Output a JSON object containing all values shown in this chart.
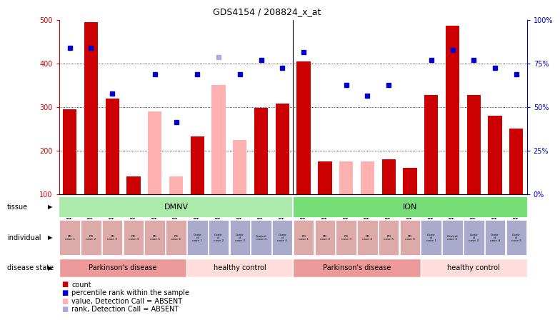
{
  "title": "GDS4154 / 208824_x_at",
  "samples": [
    "GSM488119",
    "GSM488121",
    "GSM488123",
    "GSM488125",
    "GSM488127",
    "GSM488129",
    "GSM488111",
    "GSM488113",
    "GSM488115",
    "GSM488117",
    "GSM488131",
    "GSM488120",
    "GSM488122",
    "GSM488124",
    "GSM488126",
    "GSM488128",
    "GSM488130",
    "GSM488112",
    "GSM488114",
    "GSM488116",
    "GSM488118",
    "GSM488132"
  ],
  "bar_values": [
    295,
    495,
    320,
    140,
    null,
    null,
    232,
    null,
    null,
    298,
    308,
    405,
    175,
    null,
    null,
    180,
    160,
    328,
    487,
    328,
    280,
    250
  ],
  "bar_absent": [
    null,
    null,
    null,
    null,
    290,
    140,
    null,
    350,
    225,
    null,
    null,
    null,
    null,
    175,
    175,
    null,
    null,
    null,
    null,
    null,
    null,
    null
  ],
  "rank_values": [
    435,
    435,
    330,
    null,
    375,
    265,
    375,
    null,
    375,
    408,
    390,
    425,
    null,
    350,
    325,
    350,
    null,
    407,
    430,
    408,
    390,
    375
  ],
  "rank_absent": [
    null,
    null,
    null,
    null,
    null,
    null,
    null,
    415,
    null,
    null,
    null,
    null,
    null,
    null,
    null,
    null,
    null,
    null,
    null,
    null,
    null,
    null
  ],
  "ylim_left": [
    100,
    500
  ],
  "ylim_right_labels": [
    "0%",
    "25%",
    "50%",
    "75%",
    "100%"
  ],
  "ytick_left": [
    100,
    200,
    300,
    400,
    500
  ],
  "ytick_right_pos": [
    100,
    200,
    300,
    400,
    500
  ],
  "color_bar": "#cc0000",
  "color_bar_absent": "#ffb0b0",
  "color_rank": "#0000cc",
  "color_rank_absent": "#aaaadd",
  "color_tissue_dmnv": "#aaeaaa",
  "color_tissue_ion": "#77dd77",
  "color_pd_bg": "#ee9999",
  "color_ctrl_bg": "#ffdddd",
  "color_ind_pd": "#ddaaaa",
  "color_ind_ctrl": "#aaaacc",
  "color_axis_left": "#cc0000",
  "color_axis_right": "#0000cc",
  "ind_labels": [
    "PD\ncase 1",
    "PD\ncase 2",
    "PD\ncase 3",
    "PD\ncase 4",
    "PD\ncase 5",
    "PD\ncase 6",
    "Contr\nol\ncase 1",
    "Contr\nol\ncase 2",
    "Contr\nol\ncase 3",
    "Control\ncase 4",
    "Contr\nol\ncase 5",
    "PD\ncase 1",
    "PD\ncase 2",
    "PD\ncase 3",
    "PD\ncase 4",
    "PD\ncase 5",
    "PD\ncase 6",
    "Contr\nol\ncase 1",
    "Control\ncase 2",
    "Contr\nol\ncase 3",
    "Contr\nol\ncase 4",
    "Contr\nol\ncase 5"
  ],
  "ind_pd_indices": [
    0,
    1,
    2,
    3,
    4,
    5,
    11,
    12,
    13,
    14,
    15,
    16
  ],
  "ind_ctrl_indices": [
    6,
    7,
    8,
    9,
    10,
    17,
    18,
    19,
    20,
    21
  ],
  "disease_blocks": [
    [
      0,
      5,
      "#ee9999",
      "Parkinson's disease"
    ],
    [
      6,
      10,
      "#ffdddd",
      "healthy control"
    ],
    [
      11,
      16,
      "#ee9999",
      "Parkinson's disease"
    ],
    [
      17,
      21,
      "#ffdddd",
      "healthy control"
    ]
  ],
  "legend_items": [
    [
      "#cc0000",
      "count"
    ],
    [
      "#0000cc",
      "percentile rank within the sample"
    ],
    [
      "#ffb0b0",
      "value, Detection Call = ABSENT"
    ],
    [
      "#aaaadd",
      "rank, Detection Call = ABSENT"
    ]
  ]
}
